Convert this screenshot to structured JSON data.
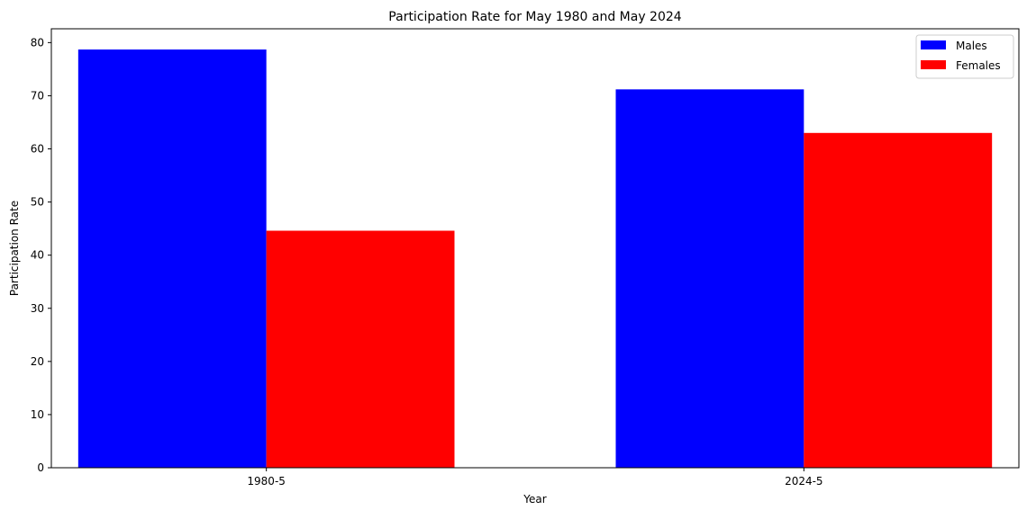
{
  "chart_data": {
    "type": "bar",
    "title": "Participation Rate for May 1980 and May 2024",
    "xlabel": "Year",
    "ylabel": "Participation Rate",
    "categories": [
      "1980-5",
      "2024-5"
    ],
    "series": [
      {
        "name": "Males",
        "values": [
          78.7,
          71.2
        ],
        "color": "#0000ff"
      },
      {
        "name": "Females",
        "values": [
          44.6,
          63.0
        ],
        "color": "#ff0000"
      }
    ],
    "ylim": [
      0,
      82.6
    ],
    "yticks": [
      0,
      10,
      20,
      30,
      40,
      50,
      60,
      70,
      80
    ],
    "grid": false,
    "legend_position": "top-right"
  }
}
